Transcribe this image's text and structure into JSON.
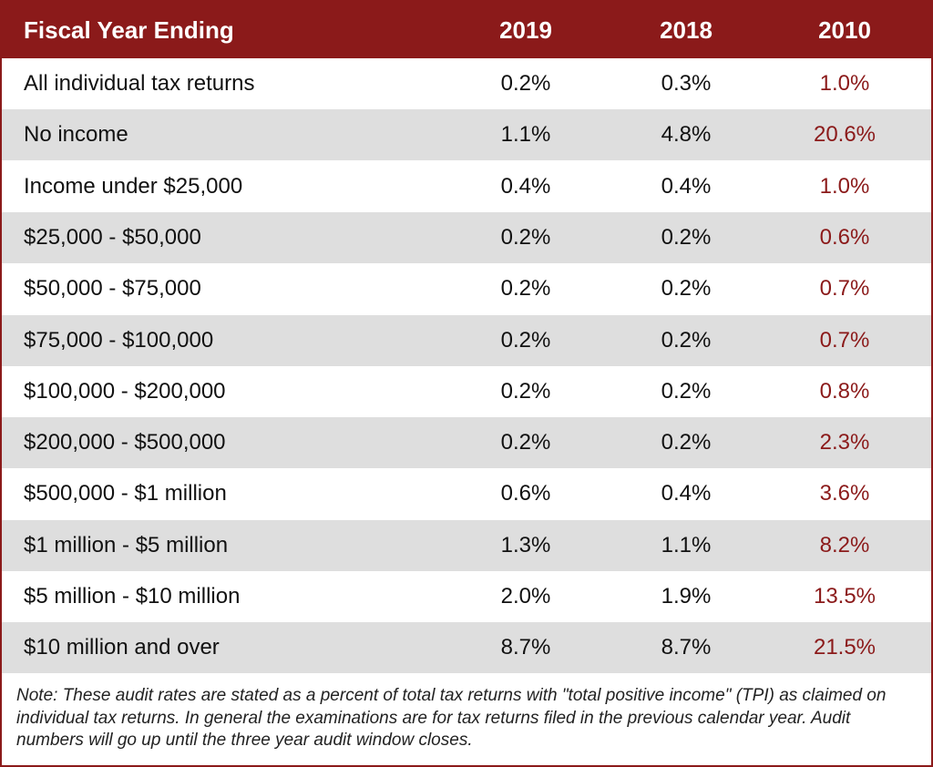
{
  "chart_data": {
    "type": "table",
    "columns": [
      "Fiscal Year Ending",
      "2019",
      "2018",
      "2010"
    ],
    "rows": [
      {
        "label": "All individual tax returns",
        "y2019": "0.2%",
        "y2018": "0.3%",
        "y2010": "1.0%"
      },
      {
        "label": "No income",
        "y2019": "1.1%",
        "y2018": "4.8%",
        "y2010": "20.6%"
      },
      {
        "label": "Income under $25,000",
        "y2019": "0.4%",
        "y2018": "0.4%",
        "y2010": "1.0%"
      },
      {
        "label": "$25,000 - $50,000",
        "y2019": "0.2%",
        "y2018": "0.2%",
        "y2010": "0.6%"
      },
      {
        "label": "$50,000 - $75,000",
        "y2019": "0.2%",
        "y2018": "0.2%",
        "y2010": "0.7%"
      },
      {
        "label": "$75,000 - $100,000",
        "y2019": "0.2%",
        "y2018": "0.2%",
        "y2010": "0.7%"
      },
      {
        "label": "$100,000 - $200,000",
        "y2019": "0.2%",
        "y2018": "0.2%",
        "y2010": "0.8%"
      },
      {
        "label": "$200,000 - $500,000",
        "y2019": "0.2%",
        "y2018": "0.2%",
        "y2010": "2.3%"
      },
      {
        "label": "$500,000 - $1 million",
        "y2019": "0.6%",
        "y2018": "0.4%",
        "y2010": "3.6%"
      },
      {
        "label": "$1 million - $5 million",
        "y2019": "1.3%",
        "y2018": "1.1%",
        "y2010": "8.2%"
      },
      {
        "label": "$5 million - $10 million",
        "y2019": "2.0%",
        "y2018": "1.9%",
        "y2010": "13.5%"
      },
      {
        "label": "$10 million and over",
        "y2019": "8.7%",
        "y2018": "8.7%",
        "y2010": "21.5%"
      }
    ],
    "note": "Note: These audit rates are stated as a percent of total tax returns with \"total positive income\" (TPI) as claimed on individual tax returns. In general the examinations are for tax returns filed in the previous calendar year. Audit numbers will go up until the three year audit window closes."
  },
  "colors": {
    "header_bg": "#8b1a1a",
    "header_text": "#ffffff",
    "alt_row_bg": "#dedede",
    "y2010_text": "#8b1a1a"
  }
}
